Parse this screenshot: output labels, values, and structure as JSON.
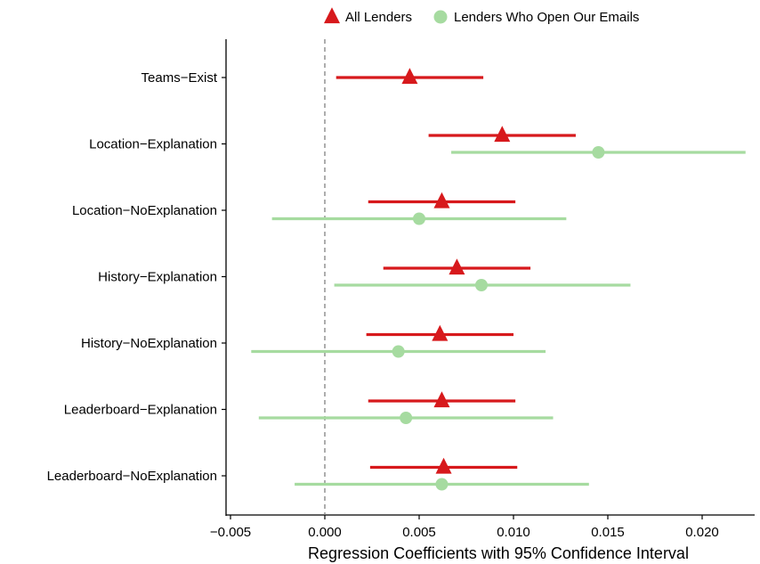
{
  "chart_data": {
    "type": "scatter",
    "subtype": "coefficient-plot",
    "title": "",
    "xlabel": "Regression Coefficients with 95% Confidence Interval",
    "ylabel": "",
    "xlim": [
      -0.0055,
      0.0225
    ],
    "x_ticks": [
      -0.005,
      0.0,
      0.005,
      0.01,
      0.015,
      0.02
    ],
    "x_tick_labels": [
      "−0.005",
      "0.000",
      "0.005",
      "0.010",
      "0.015",
      "0.020"
    ],
    "reference_line": 0,
    "grid": false,
    "legend_position": "top",
    "categories": [
      "Teams−Exist",
      "Location−Explanation",
      "Location−NoExplanation",
      "History−Explanation",
      "History−NoExplanation",
      "Leaderboard−Explanation",
      "Leaderboard−NoExplanation"
    ],
    "series": [
      {
        "name": "All Lenders",
        "color": "#d7191c",
        "marker": "triangle",
        "estimates": [
          0.0045,
          0.0094,
          0.0062,
          0.007,
          0.0061,
          0.0062,
          0.0063
        ],
        "lower": [
          0.0006,
          0.0055,
          0.0023,
          0.0031,
          0.0022,
          0.0023,
          0.0024
        ],
        "upper": [
          0.0084,
          0.0133,
          0.0101,
          0.0109,
          0.01,
          0.0101,
          0.0102
        ]
      },
      {
        "name": "Lenders Who Open Our Emails",
        "color": "#a6dba0",
        "marker": "circle",
        "estimates": [
          null,
          0.0145,
          0.005,
          0.0083,
          0.0039,
          0.0043,
          0.0062
        ],
        "lower": [
          null,
          0.0067,
          -0.0028,
          0.0005,
          -0.0039,
          -0.0035,
          -0.0016
        ],
        "upper": [
          null,
          0.0223,
          0.0128,
          0.0162,
          0.0117,
          0.0121,
          0.014
        ]
      }
    ]
  }
}
